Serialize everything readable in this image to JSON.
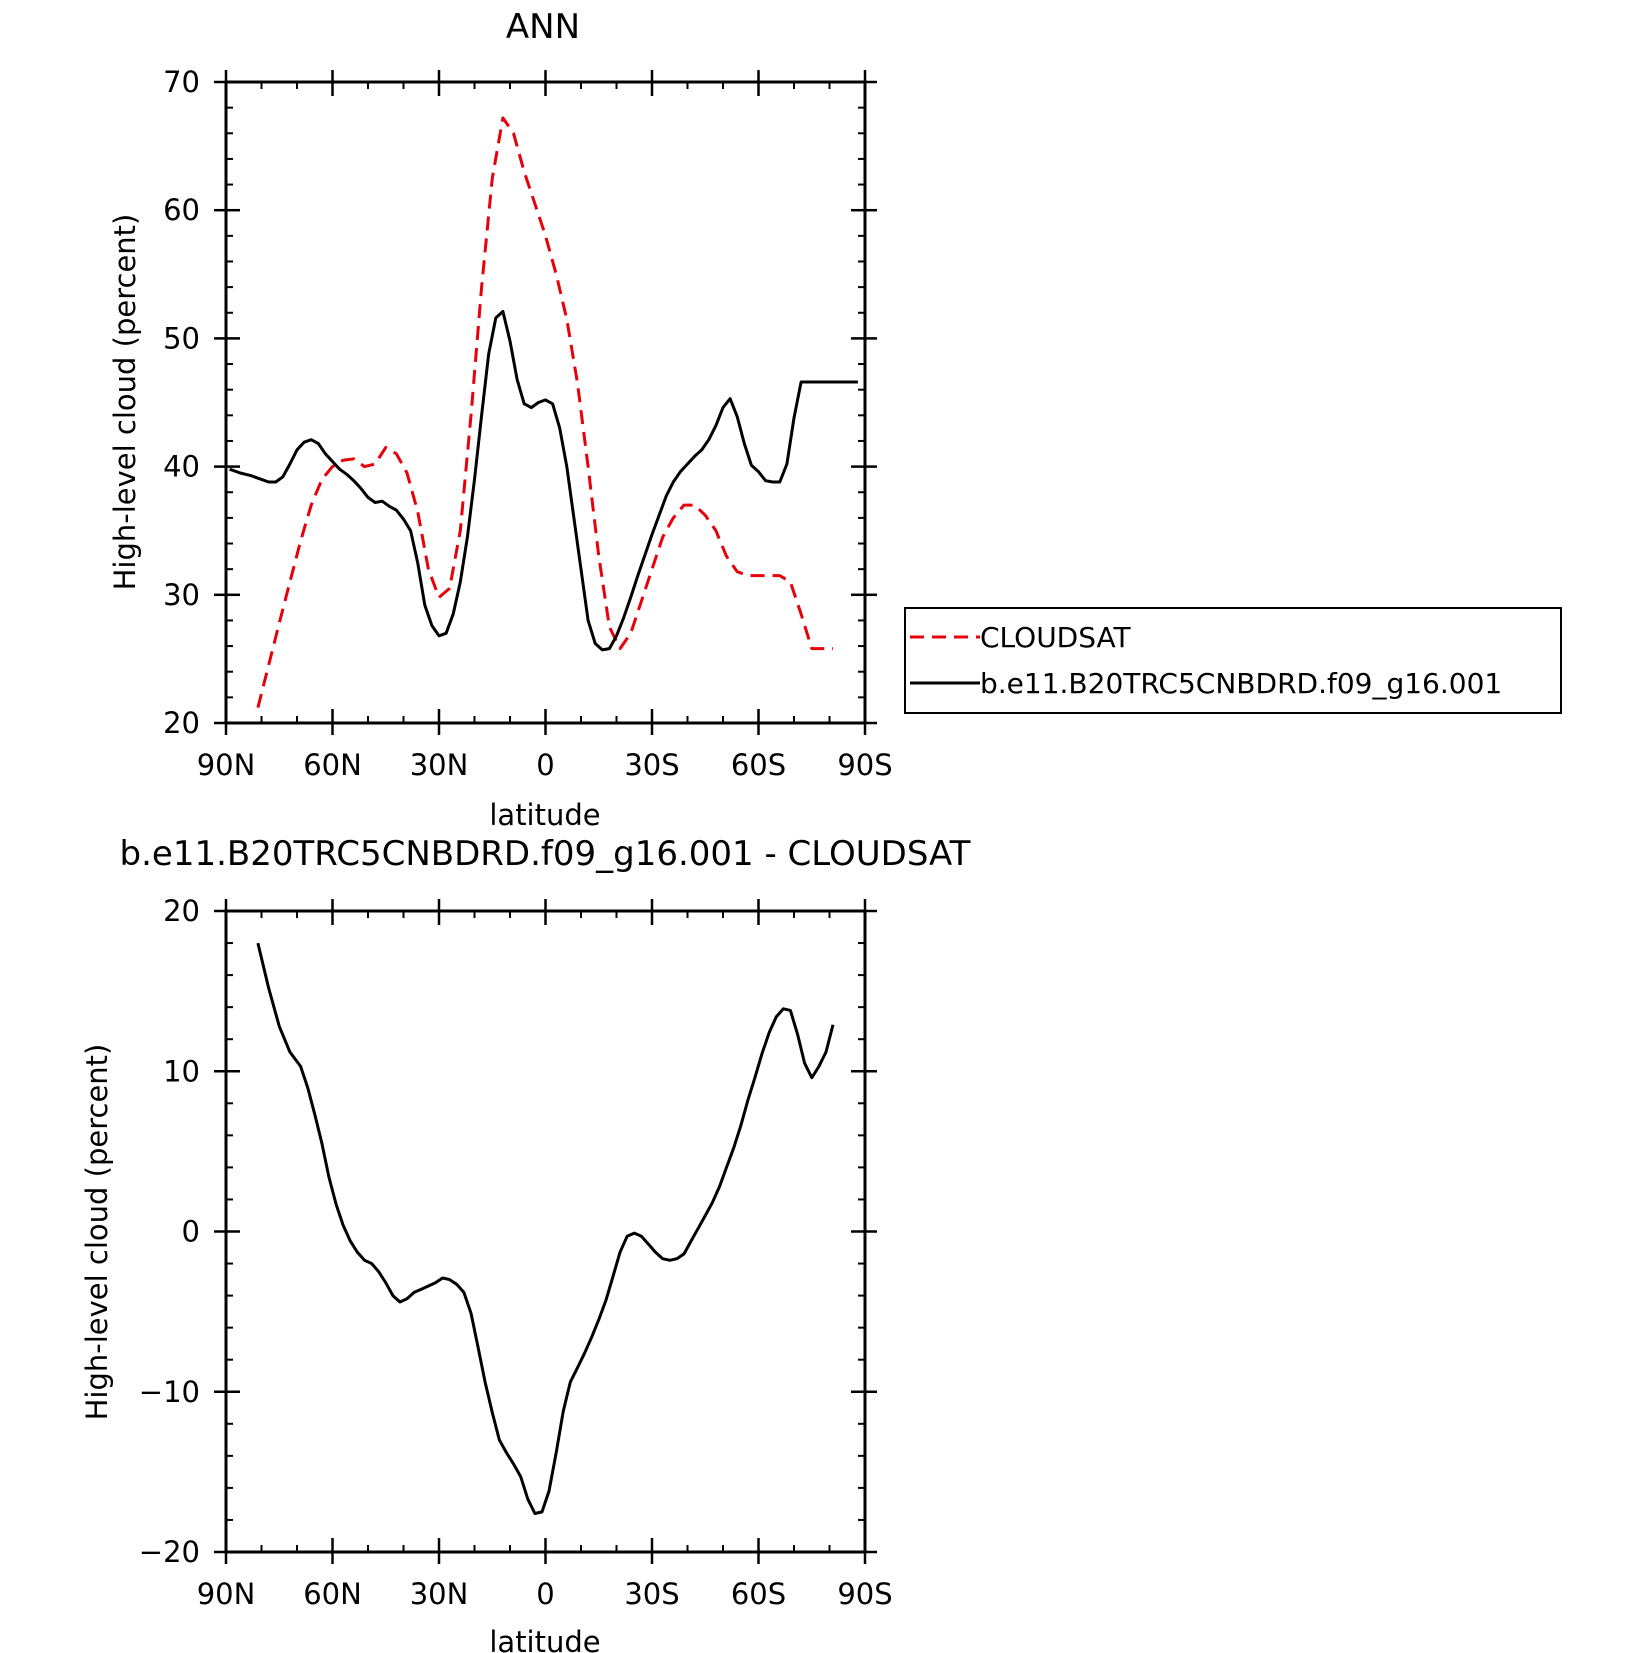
{
  "chart_data": [
    {
      "type": "line",
      "title": "ANN",
      "xlabel": "latitude",
      "ylabel": "High-level cloud (percent)",
      "xlim": [
        -90,
        90
      ],
      "ylim": [
        20,
        70
      ],
      "xticks": [
        -90,
        -60,
        -30,
        0,
        30,
        60,
        90
      ],
      "xticklabels": [
        "90N",
        "60N",
        "30N",
        "0",
        "30S",
        "60S",
        "90S"
      ],
      "yticks": [
        20,
        30,
        40,
        50,
        60,
        70
      ],
      "yticklabels": [
        "20",
        "30",
        "40",
        "50",
        "60",
        "70"
      ],
      "legend": "right",
      "series": [
        {
          "name": "CLOUDSAT",
          "color": "#e8000b",
          "dash": "dashed",
          "x": [
            -81,
            -78,
            -75,
            -72,
            -69,
            -66,
            -63,
            -60,
            -57,
            -54,
            -51,
            -48,
            -45,
            -42,
            -39,
            -36,
            -33,
            -30,
            -27,
            -24,
            -21,
            -18,
            -15,
            -12,
            -9,
            -6,
            -3,
            0,
            3,
            6,
            9,
            12,
            15,
            18,
            21,
            24,
            27,
            30,
            33,
            36,
            39,
            42,
            45,
            48,
            51,
            54,
            57,
            60,
            63,
            66,
            69,
            72,
            75,
            78,
            81
          ],
          "y": [
            21.2,
            24.5,
            27.8,
            31.0,
            34.2,
            37.0,
            39.0,
            40.0,
            40.5,
            40.6,
            40.0,
            40.2,
            41.5,
            41.0,
            39.5,
            36.5,
            32.0,
            29.8,
            30.5,
            35.0,
            44.0,
            54.0,
            62.5,
            67.2,
            66.0,
            63.0,
            60.5,
            58.0,
            55.0,
            51.5,
            46.5,
            40.0,
            33.0,
            27.5,
            25.8,
            27.0,
            29.5,
            32.0,
            34.5,
            36.0,
            37.0,
            37.0,
            36.2,
            35.0,
            33.0,
            31.8,
            31.5,
            31.5,
            31.5,
            31.5,
            31.0,
            28.5,
            25.8,
            25.8,
            25.8
          ]
        },
        {
          "name": "b.e11.B20TRC5CNBDRD.f09_g16.001",
          "color": "#000000",
          "dash": "solid",
          "x": [
            -89,
            -86,
            -83,
            -80,
            -78,
            -76,
            -74,
            -72,
            -70,
            -68,
            -66,
            -64,
            -62,
            -60,
            -58,
            -56,
            -54,
            -52,
            -50,
            -48,
            -46,
            -44,
            -42,
            -40,
            -38,
            -36,
            -34,
            -32,
            -30,
            -28,
            -26,
            -24,
            -22,
            -20,
            -18,
            -16,
            -14,
            -12,
            -10,
            -8,
            -6,
            -4,
            -2,
            0,
            2,
            4,
            6,
            8,
            10,
            12,
            14,
            16,
            18,
            20,
            22,
            24,
            26,
            28,
            30,
            32,
            34,
            36,
            38,
            40,
            42,
            44,
            46,
            48,
            50,
            52,
            54,
            56,
            58,
            60,
            62,
            64,
            66,
            68,
            70,
            72,
            74,
            76,
            78,
            80,
            82,
            84,
            86,
            88
          ],
          "y": [
            39.8,
            39.5,
            39.3,
            39.0,
            38.8,
            38.8,
            39.2,
            40.2,
            41.3,
            41.9,
            42.1,
            41.8,
            41.0,
            40.4,
            39.8,
            39.4,
            38.9,
            38.3,
            37.6,
            37.2,
            37.3,
            36.9,
            36.6,
            35.9,
            35.0,
            32.5,
            29.2,
            27.6,
            26.8,
            27.0,
            28.5,
            31.0,
            34.5,
            39.0,
            44.0,
            48.8,
            51.6,
            52.1,
            49.8,
            46.8,
            44.9,
            44.6,
            45.0,
            45.2,
            44.9,
            43.0,
            40.0,
            36.0,
            32.0,
            28.0,
            26.2,
            25.7,
            25.8,
            26.8,
            28.2,
            29.8,
            31.5,
            33.1,
            34.7,
            36.2,
            37.7,
            38.8,
            39.6,
            40.2,
            40.8,
            41.3,
            42.1,
            43.2,
            44.6,
            45.3,
            43.9,
            41.8,
            40.1,
            39.6,
            38.9,
            38.8,
            38.8,
            40.2,
            43.8,
            46.6,
            46.6,
            46.6,
            46.6,
            46.6,
            46.6,
            46.6,
            46.6,
            46.6
          ]
        }
      ]
    },
    {
      "type": "line",
      "title": "b.e11.B20TRC5CNBDRD.f09_g16.001 - CLOUDSAT",
      "xlabel": "latitude",
      "ylabel": "High-level cloud (percent)",
      "xlim": [
        -90,
        90
      ],
      "ylim": [
        -20,
        20
      ],
      "xticks": [
        -90,
        -60,
        -30,
        0,
        30,
        60,
        90
      ],
      "xticklabels": [
        "90N",
        "60N",
        "30N",
        "0",
        "30S",
        "60S",
        "90S"
      ],
      "yticks": [
        -20,
        -10,
        0,
        10,
        20
      ],
      "yticklabels": [
        "−20",
        "−10",
        "0",
        "10",
        "20"
      ],
      "series": [
        {
          "color": "#000000",
          "dash": "solid",
          "x": [
            -81,
            -78,
            -75,
            -72,
            -69,
            -67,
            -65,
            -63,
            -61,
            -59,
            -57,
            -55,
            -53,
            -51,
            -49,
            -47,
            -45,
            -43,
            -41,
            -39,
            -37,
            -35,
            -33,
            -31,
            -29,
            -27,
            -25,
            -23,
            -21,
            -19,
            -17,
            -15,
            -13,
            -11,
            -9,
            -7,
            -5,
            -3,
            -1,
            1,
            3,
            5,
            7,
            9,
            11,
            13,
            15,
            17,
            19,
            21,
            23,
            25,
            27,
            29,
            31,
            33,
            35,
            37,
            39,
            41,
            43,
            45,
            47,
            49,
            51,
            53,
            55,
            57,
            59,
            61,
            63,
            65,
            67,
            69,
            71,
            73,
            75,
            77,
            79,
            81
          ],
          "y": [
            18.0,
            15.2,
            12.8,
            11.2,
            10.3,
            9.0,
            7.3,
            5.5,
            3.4,
            1.7,
            0.4,
            -0.6,
            -1.3,
            -1.8,
            -2.0,
            -2.5,
            -3.2,
            -4.0,
            -4.4,
            -4.2,
            -3.8,
            -3.6,
            -3.4,
            -3.2,
            -2.9,
            -3.0,
            -3.3,
            -3.8,
            -5.1,
            -7.2,
            -9.4,
            -11.3,
            -13.0,
            -13.8,
            -14.5,
            -15.3,
            -16.7,
            -17.6,
            -17.5,
            -16.2,
            -13.8,
            -11.2,
            -9.4,
            -8.5,
            -7.6,
            -6.6,
            -5.5,
            -4.3,
            -2.8,
            -1.3,
            -0.3,
            -0.1,
            -0.3,
            -0.8,
            -1.3,
            -1.7,
            -1.8,
            -1.7,
            -1.4,
            -0.6,
            0.2,
            1.0,
            1.8,
            2.8,
            4.0,
            5.2,
            6.6,
            8.2,
            9.6,
            11.1,
            12.4,
            13.4,
            13.9,
            13.8,
            12.3,
            10.5,
            9.6,
            10.3,
            11.2,
            12.9
          ]
        }
      ]
    }
  ]
}
